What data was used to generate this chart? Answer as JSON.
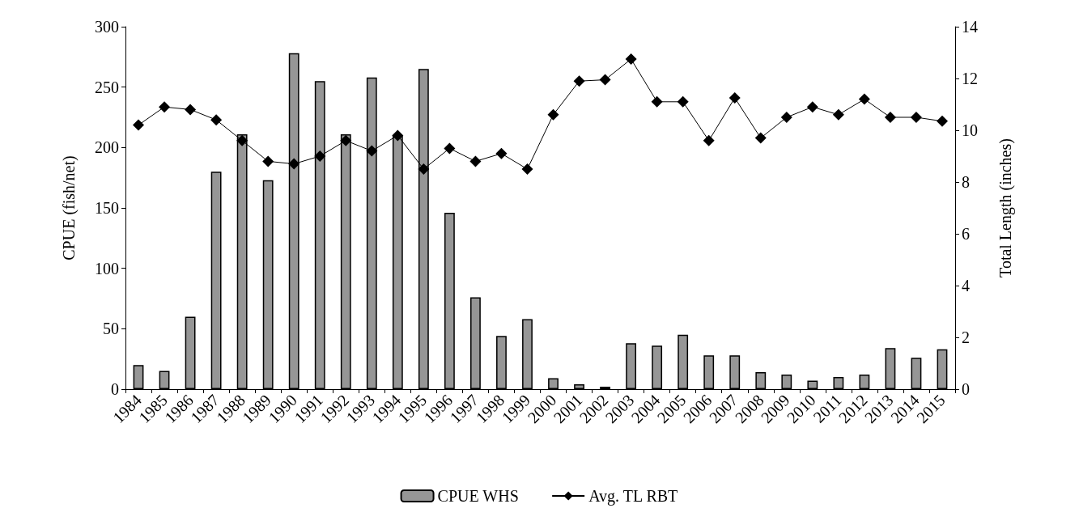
{
  "chart_data": {
    "type": "bar",
    "categories": [
      "1984",
      "1985",
      "1986",
      "1987",
      "1988",
      "1989",
      "1990",
      "1991",
      "1992",
      "1993",
      "1994",
      "1995",
      "1996",
      "1997",
      "1998",
      "1999",
      "2000",
      "2001",
      "2002",
      "2003",
      "2004",
      "2005",
      "2006",
      "2007",
      "2008",
      "2009",
      "2010",
      "2011",
      "2012",
      "2013",
      "2014",
      "2015"
    ],
    "series": [
      {
        "name": "CPUE WHS",
        "color": "#969696",
        "values": [
          20,
          15,
          60,
          180,
          211,
          173,
          278,
          255,
          211,
          258,
          210,
          265,
          146,
          76,
          44,
          58,
          9,
          4,
          2,
          38,
          36,
          45,
          28,
          28,
          14,
          12,
          7,
          10,
          12,
          34,
          26,
          33
        ]
      },
      {
        "name": "Avg. TL RBT",
        "type": "line",
        "axis": "y2",
        "color": "#000000",
        "values": [
          10.2,
          10.9,
          10.8,
          10.4,
          9.6,
          8.8,
          8.7,
          9.0,
          9.6,
          9.2,
          9.8,
          8.5,
          9.3,
          8.8,
          9.1,
          8.5,
          10.6,
          11.9,
          11.95,
          12.75,
          11.1,
          11.1,
          9.6,
          11.25,
          9.7,
          10.5,
          10.9,
          10.6,
          11.2,
          10.5,
          10.5,
          10.35
        ]
      }
    ],
    "ylabel": "CPUE (fish/net)",
    "y2label": "Total Length (inches)",
    "ylim": [
      0,
      300
    ],
    "yticks": [
      0,
      50,
      100,
      150,
      200,
      250,
      300
    ],
    "y2lim": [
      0,
      14
    ],
    "y2ticks": [
      0,
      2,
      4,
      6,
      8,
      10,
      12,
      14
    ],
    "grid": false,
    "legend": "bottom",
    "marker": "diamond",
    "line_style": "solid"
  }
}
